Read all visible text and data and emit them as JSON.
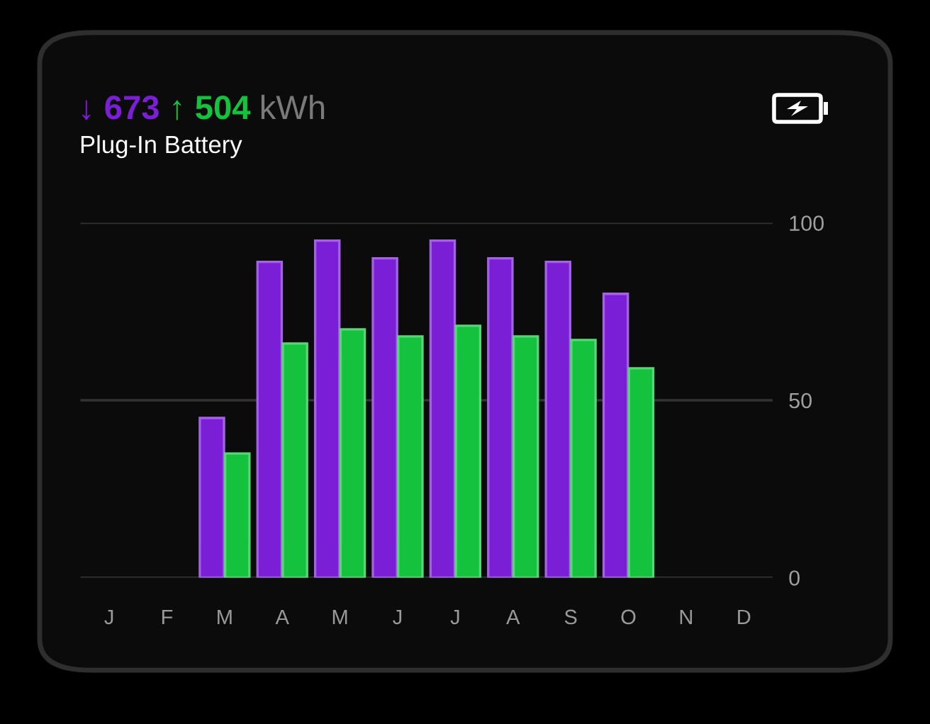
{
  "chart_data": {
    "type": "bar",
    "title": "↓ 673 ↑ 504 kWh",
    "subtitle": "Plug-In Battery",
    "categories": [
      "J",
      "F",
      "M",
      "A",
      "M",
      "J",
      "J",
      "A",
      "S",
      "O",
      "N",
      "D"
    ],
    "series": [
      {
        "color": "#7a1fd6",
        "values": [
          null,
          null,
          45,
          89,
          95,
          90,
          95,
          90,
          89,
          80,
          null,
          null
        ]
      },
      {
        "color": "#14c23e",
        "values": [
          null,
          null,
          35,
          66,
          70,
          68,
          71,
          68,
          67,
          59,
          null,
          null
        ]
      }
    ],
    "ylim": [
      0,
      100
    ],
    "yticks": [
      0,
      50,
      100
    ],
    "grid": "y"
  }
}
